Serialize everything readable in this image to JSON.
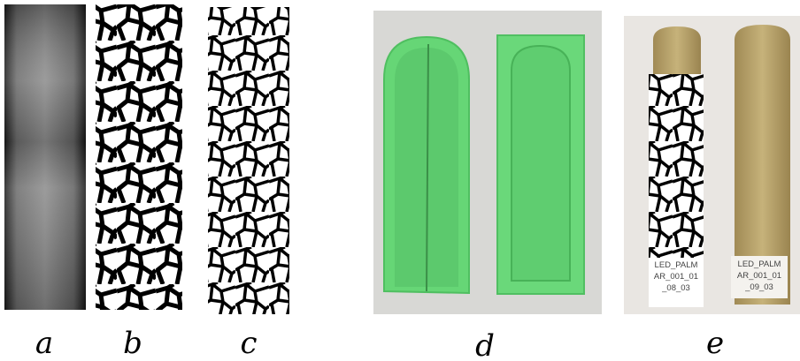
{
  "panels": [
    {
      "label": "a"
    },
    {
      "label": "b"
    },
    {
      "label": "c"
    },
    {
      "label": "d"
    },
    {
      "label": "e",
      "tags": [
        {
          "lines": [
            "LED_PALM",
            "AR_001_01",
            "_08_03"
          ]
        },
        {
          "lines": [
            "LED_PALM",
            "AR_001_01",
            "_09_03"
          ]
        }
      ]
    }
  ]
}
